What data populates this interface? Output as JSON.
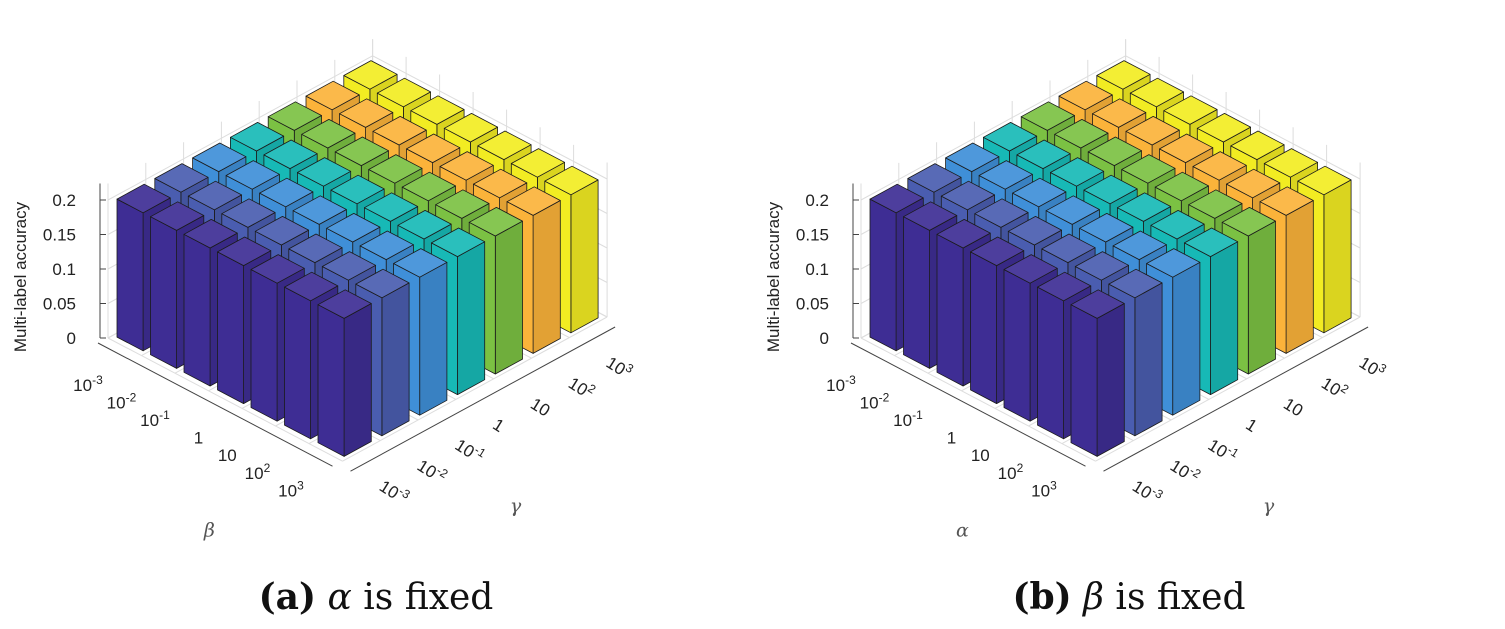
{
  "chart_data": [
    {
      "type": "bar3d",
      "caption_tag": "(a)",
      "caption_var": "α",
      "caption_rest": " is fixed",
      "zlabel": "Multi-label accuracy",
      "depth_axis_label": "β",
      "width_axis_label": "γ",
      "zlim": [
        0,
        0.2
      ],
      "zticks": [
        "0",
        "0.05",
        "0.1",
        "0.15",
        "0.2"
      ],
      "grid": true,
      "depth_categories": [
        "10-3",
        "10-2",
        "10-1",
        "1",
        "10",
        "102",
        "103"
      ],
      "width_categories": [
        "10-3",
        "10-2",
        "10-1",
        "1",
        "10",
        "102",
        "103"
      ],
      "series": [
        {
          "width_value": "10-3",
          "values": [
            0.2,
            0.2,
            0.2,
            0.2,
            0.2,
            0.2,
            0.2
          ]
        },
        {
          "width_value": "10-2",
          "values": [
            0.2,
            0.2,
            0.2,
            0.2,
            0.2,
            0.2,
            0.2
          ]
        },
        {
          "width_value": "10-1",
          "values": [
            0.2,
            0.2,
            0.2,
            0.2,
            0.2,
            0.2,
            0.2
          ]
        },
        {
          "width_value": "1",
          "values": [
            0.2,
            0.2,
            0.2,
            0.2,
            0.2,
            0.2,
            0.2
          ]
        },
        {
          "width_value": "10",
          "values": [
            0.2,
            0.2,
            0.2,
            0.2,
            0.2,
            0.2,
            0.2
          ]
        },
        {
          "width_value": "102",
          "values": [
            0.2,
            0.2,
            0.2,
            0.2,
            0.2,
            0.2,
            0.2
          ]
        },
        {
          "width_value": "103",
          "values": [
            0.2,
            0.2,
            0.2,
            0.2,
            0.2,
            0.2,
            0.2
          ]
        }
      ]
    },
    {
      "type": "bar3d",
      "caption_tag": "(b)",
      "caption_var": "β",
      "caption_rest": " is fixed",
      "zlabel": "Multi-label accuracy",
      "depth_axis_label": "α",
      "width_axis_label": "γ",
      "zlim": [
        0,
        0.2
      ],
      "zticks": [
        "0",
        "0.05",
        "0.1",
        "0.15",
        "0.2"
      ],
      "grid": true,
      "depth_categories": [
        "10-3",
        "10-2",
        "10-1",
        "1",
        "10",
        "102",
        "103"
      ],
      "width_categories": [
        "10-3",
        "10-2",
        "10-1",
        "1",
        "10",
        "102",
        "103"
      ],
      "series": [
        {
          "width_value": "10-3",
          "values": [
            0.2,
            0.2,
            0.2,
            0.2,
            0.2,
            0.2,
            0.2
          ]
        },
        {
          "width_value": "10-2",
          "values": [
            0.2,
            0.2,
            0.2,
            0.2,
            0.2,
            0.2,
            0.2
          ]
        },
        {
          "width_value": "10-1",
          "values": [
            0.2,
            0.2,
            0.2,
            0.2,
            0.2,
            0.2,
            0.2
          ]
        },
        {
          "width_value": "1",
          "values": [
            0.2,
            0.2,
            0.2,
            0.2,
            0.2,
            0.2,
            0.2
          ]
        },
        {
          "width_value": "10",
          "values": [
            0.2,
            0.2,
            0.2,
            0.2,
            0.2,
            0.2,
            0.2
          ]
        },
        {
          "width_value": "102",
          "values": [
            0.2,
            0.2,
            0.2,
            0.2,
            0.2,
            0.2,
            0.2
          ]
        },
        {
          "width_value": "103",
          "values": [
            0.2,
            0.2,
            0.2,
            0.2,
            0.2,
            0.2,
            0.2
          ]
        }
      ]
    }
  ],
  "colors": [
    "#3e2d94",
    "#4a5db0",
    "#3f8fd8",
    "#17b9b6",
    "#7bc143",
    "#fbb33a",
    "#f2ec22"
  ]
}
